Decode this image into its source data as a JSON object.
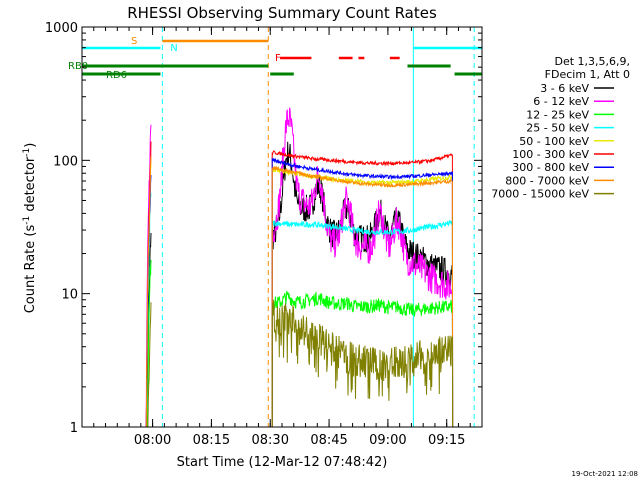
{
  "chart_data": {
    "type": "line",
    "title": "RHESSI Observing Summary Count Rates",
    "xlabel": "Start Time (12-Mar-12 07:48:42)",
    "ylabel_main": "Count Rate (s",
    "ylabel_sup": "-1",
    "ylabel_end": " detector",
    "ylabel_sup2": "-1",
    "ylabel_close": ")",
    "yscale": "log",
    "ylim": [
      1,
      1000
    ],
    "xlim_minutes": [
      -6,
      96
    ],
    "yticks": [
      {
        "value": 1,
        "label": "1"
      },
      {
        "value": 10,
        "label": "10"
      },
      {
        "value": 100,
        "label": "100"
      },
      {
        "value": 1000,
        "label": "1000"
      }
    ],
    "xticks": [
      {
        "min": 12,
        "label": "08:00"
      },
      {
        "min": 27,
        "label": "08:15"
      },
      {
        "min": 42,
        "label": "08:30"
      },
      {
        "min": 57,
        "label": "08:45"
      },
      {
        "min": 72,
        "label": "09:00"
      },
      {
        "min": 87,
        "label": "09:15"
      }
    ],
    "legend_header": [
      "Det 1,3,5,6,9,",
      "FDecim 1, Att 0"
    ],
    "series": [
      {
        "name": "3 - 6 keV",
        "color": "#000000",
        "profile": [
          26,
          45,
          42,
          28,
          26,
          26,
          25,
          20,
          16,
          14
        ]
      },
      {
        "name": "6 - 12 keV",
        "color": "#ff00ff",
        "profile": [
          28,
          60,
          40,
          24,
          24,
          21,
          20,
          17,
          13,
          11
        ]
      },
      {
        "name": "12 - 25 keV",
        "color": "#00ff00",
        "profile": [
          8.5,
          8.5,
          9,
          8.5,
          8,
          8,
          7.8,
          7.5,
          7.8,
          8
        ]
      },
      {
        "name": "25 - 50 keV",
        "color": "#00ffff",
        "profile": [
          34,
          33,
          33,
          32,
          30,
          29,
          29,
          30,
          32,
          34
        ]
      },
      {
        "name": "50 - 100 keV",
        "color": "#e8e800",
        "profile": [
          85,
          80,
          76,
          72,
          70,
          68,
          68,
          69,
          72,
          75
        ]
      },
      {
        "name": "100 - 300 keV",
        "color": "#ff0000",
        "profile": [
          115,
          108,
          103,
          100,
          97,
          95,
          95,
          96,
          100,
          110
        ]
      },
      {
        "name": "300 - 800 keV",
        "color": "#0000ff",
        "profile": [
          100,
          92,
          86,
          82,
          78,
          76,
          75,
          76,
          78,
          80
        ]
      },
      {
        "name": "800 - 7000 keV",
        "color": "#ff8c00",
        "profile": [
          88,
          82,
          76,
          72,
          68,
          66,
          65,
          66,
          68,
          70
        ]
      },
      {
        "name": "7000 - 15000 keV",
        "color": "#808000",
        "profile": [
          7,
          6,
          4.8,
          3.8,
          3.2,
          3,
          3,
          3.2,
          3.5,
          3.6
        ]
      }
    ],
    "flag_labels": {
      "s": "S",
      "n": "N",
      "f": "F",
      "rb0": "RB0",
      "rd6": "RD6"
    },
    "flag_colors": {
      "s": "#ff8c00",
      "n": "#00ffff",
      "f": "#ff0000",
      "rb": "#008000"
    }
  },
  "timestamp": "19-Oct-2021 12:08"
}
